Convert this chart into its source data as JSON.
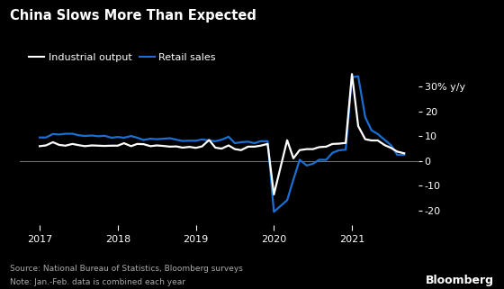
{
  "title": "China Slows More Than Expected",
  "source_note": "Source: National Bureau of Statistics, Bloomberg surveys",
  "note": "Note: Jan.-Feb. data is combined each year",
  "bloomberg_label": "Bloomberg",
  "background_color": "#000000",
  "text_color": "#ffffff",
  "industrial_color": "#ffffff",
  "retail_color": "#1a6fd4",
  "yticks": [
    -20,
    -10,
    0,
    10,
    20,
    30
  ],
  "ylim": [
    -26,
    37
  ],
  "xlim_start": 2016.75,
  "xlim_end": 2021.85,
  "xtick_years": [
    2017,
    2018,
    2019,
    2020,
    2021
  ],
  "industrial_data": [
    [
      2017.0,
      6.0
    ],
    [
      2017.08,
      6.3
    ],
    [
      2017.17,
      7.6
    ],
    [
      2017.25,
      6.5
    ],
    [
      2017.33,
      6.2
    ],
    [
      2017.42,
      6.9
    ],
    [
      2017.5,
      6.4
    ],
    [
      2017.58,
      6.0
    ],
    [
      2017.67,
      6.3
    ],
    [
      2017.75,
      6.2
    ],
    [
      2017.83,
      6.1
    ],
    [
      2017.92,
      6.2
    ],
    [
      2018.0,
      6.2
    ],
    [
      2018.08,
      7.2
    ],
    [
      2018.17,
      6.0
    ],
    [
      2018.25,
      6.9
    ],
    [
      2018.33,
      6.8
    ],
    [
      2018.42,
      6.0
    ],
    [
      2018.5,
      6.3
    ],
    [
      2018.58,
      6.1
    ],
    [
      2018.67,
      5.8
    ],
    [
      2018.75,
      5.9
    ],
    [
      2018.83,
      5.4
    ],
    [
      2018.92,
      5.7
    ],
    [
      2019.0,
      5.3
    ],
    [
      2019.08,
      5.9
    ],
    [
      2019.17,
      8.5
    ],
    [
      2019.25,
      5.4
    ],
    [
      2019.33,
      5.0
    ],
    [
      2019.42,
      6.3
    ],
    [
      2019.5,
      4.8
    ],
    [
      2019.58,
      4.4
    ],
    [
      2019.67,
      5.8
    ],
    [
      2019.75,
      5.8
    ],
    [
      2019.83,
      6.2
    ],
    [
      2019.92,
      6.9
    ],
    [
      2020.0,
      -13.5
    ],
    [
      2020.17,
      8.4
    ],
    [
      2020.25,
      1.1
    ],
    [
      2020.33,
      4.4
    ],
    [
      2020.42,
      4.8
    ],
    [
      2020.5,
      4.8
    ],
    [
      2020.58,
      5.6
    ],
    [
      2020.67,
      5.8
    ],
    [
      2020.75,
      6.9
    ],
    [
      2020.83,
      7.0
    ],
    [
      2020.92,
      7.3
    ],
    [
      2021.0,
      35.1
    ],
    [
      2021.08,
      14.1
    ],
    [
      2021.17,
      8.8
    ],
    [
      2021.25,
      8.3
    ],
    [
      2021.33,
      8.3
    ],
    [
      2021.42,
      6.4
    ],
    [
      2021.5,
      5.3
    ],
    [
      2021.58,
      3.8
    ],
    [
      2021.67,
      3.1
    ]
  ],
  "retail_data": [
    [
      2017.0,
      9.5
    ],
    [
      2017.08,
      9.5
    ],
    [
      2017.17,
      10.9
    ],
    [
      2017.25,
      10.7
    ],
    [
      2017.33,
      11.0
    ],
    [
      2017.42,
      11.0
    ],
    [
      2017.5,
      10.4
    ],
    [
      2017.58,
      10.1
    ],
    [
      2017.67,
      10.3
    ],
    [
      2017.75,
      10.0
    ],
    [
      2017.83,
      10.2
    ],
    [
      2017.92,
      9.4
    ],
    [
      2018.0,
      9.7
    ],
    [
      2018.08,
      9.4
    ],
    [
      2018.17,
      10.1
    ],
    [
      2018.25,
      9.4
    ],
    [
      2018.33,
      8.5
    ],
    [
      2018.42,
      9.0
    ],
    [
      2018.5,
      8.8
    ],
    [
      2018.58,
      9.0
    ],
    [
      2018.67,
      9.2
    ],
    [
      2018.75,
      8.6
    ],
    [
      2018.83,
      8.1
    ],
    [
      2018.92,
      8.2
    ],
    [
      2019.0,
      8.2
    ],
    [
      2019.08,
      8.7
    ],
    [
      2019.17,
      8.3
    ],
    [
      2019.25,
      8.0
    ],
    [
      2019.33,
      8.6
    ],
    [
      2019.42,
      9.8
    ],
    [
      2019.5,
      7.2
    ],
    [
      2019.58,
      7.6
    ],
    [
      2019.67,
      7.8
    ],
    [
      2019.75,
      7.2
    ],
    [
      2019.83,
      8.0
    ],
    [
      2019.92,
      8.0
    ],
    [
      2020.0,
      -20.5
    ],
    [
      2020.17,
      -15.8
    ],
    [
      2020.25,
      -7.5
    ],
    [
      2020.33,
      0.5
    ],
    [
      2020.42,
      -1.8
    ],
    [
      2020.5,
      -1.1
    ],
    [
      2020.58,
      0.5
    ],
    [
      2020.67,
      0.5
    ],
    [
      2020.75,
      3.3
    ],
    [
      2020.83,
      4.3
    ],
    [
      2020.92,
      4.6
    ],
    [
      2021.0,
      33.8
    ],
    [
      2021.08,
      34.2
    ],
    [
      2021.17,
      17.7
    ],
    [
      2021.25,
      12.4
    ],
    [
      2021.33,
      10.9
    ],
    [
      2021.42,
      8.5
    ],
    [
      2021.5,
      6.4
    ],
    [
      2021.58,
      2.5
    ],
    [
      2021.67,
      2.5
    ]
  ]
}
